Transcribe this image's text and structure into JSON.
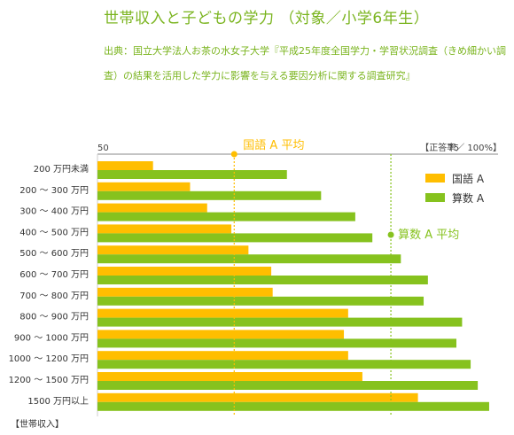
{
  "title": "世帯収入と子どもの学力 （対象／小学6年生）",
  "source": "出典：国立大学法人お茶の水女子大学『平成25年度全国学力・学習状況調査（きめ細かい調査）の結果を活用した学力に影響を与える要因分析に関する調査研究』",
  "colors": {
    "kokugo": "#ffbe00",
    "sansu": "#86c21e",
    "accent": "#7ab41e"
  },
  "chart_data": {
    "type": "bar",
    "orientation": "horizontal",
    "categories": [
      "200 万円未満",
      "200 ～ 300 万円",
      "300 ～ 400 万円",
      "400 ～ 500 万円",
      "500 ～ 600 万円",
      "600 ～ 700 万円",
      "700 ～ 800 万円",
      "800 ～ 900 万円",
      "900 ～ 1000 万円",
      "1000 ～ 1200 万円",
      "1200 ～ 1500 万円",
      "1500 万円以上"
    ],
    "series": [
      {
        "name": "国語 A",
        "values": [
          53.9,
          56.5,
          57.7,
          59.4,
          60.6,
          62.2,
          62.3,
          67.6,
          67.3,
          67.6,
          68.6,
          72.5
        ]
      },
      {
        "name": "算数 A",
        "values": [
          63.3,
          65.7,
          68.1,
          69.3,
          71.3,
          73.2,
          72.9,
          75.6,
          75.2,
          76.2,
          76.7,
          77.5
        ]
      }
    ],
    "xlim": [
      50,
      78
    ],
    "xticks": [
      50,
      75
    ],
    "unit_label": "【正答率／ 100%】",
    "category_label": "【世帯収入】",
    "averages": [
      {
        "label": "国語 A 平均",
        "value": 59.6,
        "series": 0
      },
      {
        "label": "算数 A 平均",
        "value": 70.6,
        "series": 1
      }
    ],
    "legend": {
      "position": "top-right",
      "entries": [
        "国語 A",
        "算数 A"
      ]
    }
  }
}
